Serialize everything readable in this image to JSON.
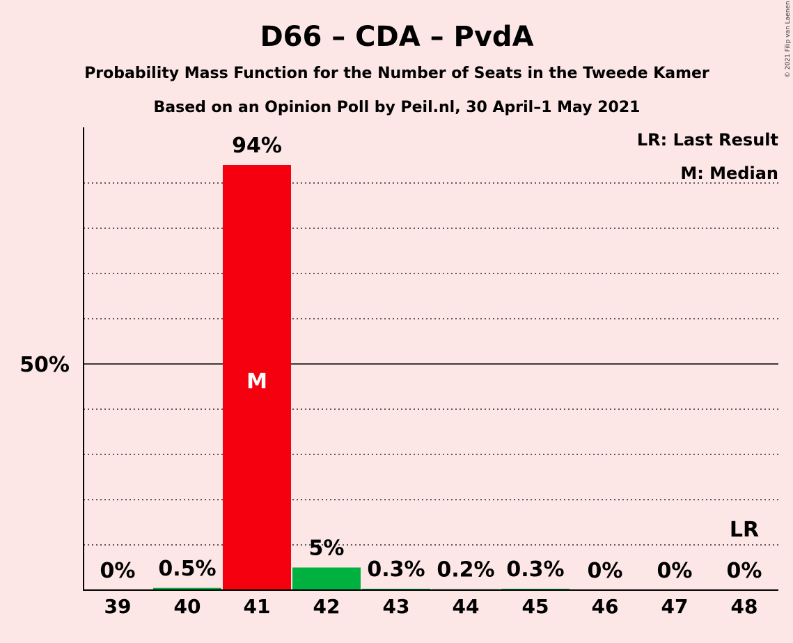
{
  "title": "D66 – CDA – PvdA",
  "subtitle": "Probability Mass Function for the Number of Seats in the Tweede Kamer",
  "subtitle2": "Based on an Opinion Poll by Peil.nl, 30 April–1 May 2021",
  "copyright": "© 2021 Filip van Laenen",
  "legend": {
    "lr": "LR: Last Result",
    "m": "M: Median"
  },
  "colors": {
    "background": "#fde6e6",
    "median_bar": "#f5000f",
    "other_bar": "#00b140",
    "axis": "#000000"
  },
  "chart_data": {
    "type": "bar",
    "categories": [
      "39",
      "40",
      "41",
      "42",
      "43",
      "44",
      "45",
      "46",
      "47",
      "48"
    ],
    "values": [
      0,
      0.5,
      94,
      5,
      0.3,
      0.2,
      0.3,
      0,
      0,
      0
    ],
    "value_labels": [
      "0%",
      "0.5%",
      "94%",
      "5%",
      "0.3%",
      "0.2%",
      "0.3%",
      "0%",
      "0%",
      "0%"
    ],
    "ylim": [
      0,
      100
    ],
    "y_tick": {
      "value": 50,
      "label": "50%"
    },
    "gridlines": [
      10,
      20,
      30,
      40,
      60,
      70,
      80,
      90
    ],
    "median": {
      "category": "41",
      "label": "M"
    },
    "last_result": {
      "category": "48",
      "label": "LR"
    }
  }
}
